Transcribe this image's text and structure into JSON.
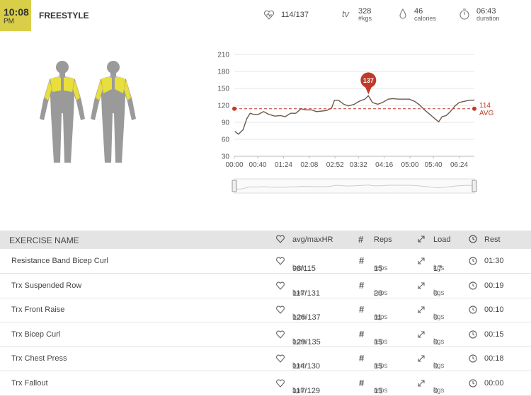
{
  "header": {
    "time": "10:08",
    "ampm": "PM",
    "title": "FREESTYLE",
    "stats": {
      "heart_rate": "114/137",
      "tv_label": "tv",
      "volume": "328",
      "volume_unit": "#kgs",
      "calories": "46",
      "calories_label": "calories",
      "duration": "06:43",
      "duration_label": "duration"
    }
  },
  "chart_data": {
    "type": "line",
    "color": "#6b5a4c",
    "x": [
      1,
      7,
      15,
      21,
      27,
      33,
      41,
      50,
      59,
      69,
      79,
      87,
      96,
      105,
      114,
      122,
      132,
      140,
      150,
      158,
      166,
      171,
      178,
      187,
      195,
      205,
      213,
      223,
      229,
      236,
      245,
      253,
      263,
      271,
      280,
      290,
      299,
      308,
      316,
      326,
      334,
      343,
      349,
      355,
      362,
      369,
      377,
      384,
      392,
      401,
      408,
      410
    ],
    "values": [
      74,
      69,
      77,
      96,
      106,
      104,
      104,
      109,
      104,
      101,
      102,
      100,
      106,
      106,
      114,
      112,
      112,
      109,
      110,
      111,
      115,
      129,
      129,
      122,
      119,
      122,
      127,
      131,
      137,
      125,
      122,
      125,
      131,
      132,
      131,
      131,
      131,
      127,
      121,
      111,
      104,
      96,
      91,
      100,
      102,
      109,
      119,
      125,
      127,
      129,
      129,
      130
    ],
    "xlim": [
      0,
      410
    ],
    "ylim": [
      30,
      210
    ],
    "xticks": [
      {
        "value": 0,
        "label": "00:00"
      },
      {
        "value": 40,
        "label": "00:40"
      },
      {
        "value": 84,
        "label": "01:24"
      },
      {
        "value": 128,
        "label": "02:08"
      },
      {
        "value": 172,
        "label": "02:52"
      },
      {
        "value": 212,
        "label": "03:32"
      },
      {
        "value": 256,
        "label": "04:16"
      },
      {
        "value": 300,
        "label": "05:00"
      },
      {
        "value": 340,
        "label": "05:40"
      },
      {
        "value": 384,
        "label": "06:24"
      }
    ],
    "yticks": [
      30,
      60,
      90,
      120,
      150,
      180,
      210
    ],
    "grid": true,
    "average": 114,
    "average_label": "AVG",
    "average_color": "#c0392b",
    "peak": {
      "x": 229,
      "value": 137
    }
  },
  "table": {
    "columns": [
      "EXERCISE NAME",
      "avg/maxHR",
      "Reps",
      "Load",
      "Rest"
    ],
    "units": {
      "hr": "bpm",
      "reps": "reps",
      "load": "kgs"
    },
    "rows": [
      {
        "name": "Resistance Band Bicep Curl",
        "hr": "98/115",
        "reps": 15,
        "load": 17,
        "rest": "01:30"
      },
      {
        "name": "Trx Suspended Row",
        "hr": "117/131",
        "reps": 20,
        "load": 0,
        "rest": "00:19"
      },
      {
        "name": "Trx Front Raise",
        "hr": "126/137",
        "reps": 11,
        "load": 0,
        "rest": "00:10"
      },
      {
        "name": "Trx Bicep Curl",
        "hr": "129/135",
        "reps": 15,
        "load": 0,
        "rest": "00:15"
      },
      {
        "name": "Trx Chest Press",
        "hr": "114/130",
        "reps": 15,
        "load": 0,
        "rest": "00:18"
      },
      {
        "name": "Trx Fallout",
        "hr": "117/129",
        "reps": 15,
        "load": 0,
        "rest": "00:00"
      }
    ]
  }
}
